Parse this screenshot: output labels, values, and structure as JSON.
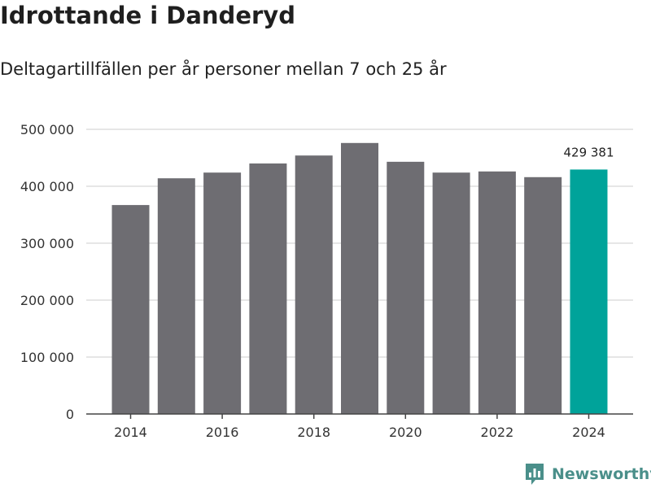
{
  "title": "Idrottande i Danderyd",
  "subtitle": "Deltagartillfällen per år personer mellan 7 och 25 år",
  "brand": {
    "name": "Newsworthy"
  },
  "colors": {
    "bar": "#6e6d72",
    "highlight": "#00a39a",
    "grid": "#dddddd",
    "axis": "#444444",
    "text": "#333333",
    "brand": "#4a8f8a"
  },
  "chart_data": {
    "type": "bar",
    "title": "Idrottande i Danderyd",
    "subtitle": "Deltagartillfällen per år personer mellan 7 och 25 år",
    "xlabel": "",
    "ylabel": "",
    "categories": [
      "2014",
      "2015",
      "2016",
      "2017",
      "2018",
      "2019",
      "2020",
      "2021",
      "2022",
      "2023",
      "2024"
    ],
    "values": [
      367000,
      414000,
      424000,
      440000,
      454000,
      476000,
      443000,
      424000,
      426000,
      416000,
      429381
    ],
    "highlight_index": 10,
    "highlight_label": "429 381",
    "ylim": [
      0,
      500000
    ],
    "y_ticks": [
      0,
      100000,
      200000,
      300000,
      400000,
      500000
    ],
    "y_tick_labels": [
      "0",
      "100 000",
      "200 000",
      "300 000",
      "400 000",
      "500 000"
    ],
    "x_tick_labels": [
      "2014",
      "2016",
      "2018",
      "2020",
      "2022",
      "2024"
    ],
    "grid": true,
    "legend": "none"
  }
}
